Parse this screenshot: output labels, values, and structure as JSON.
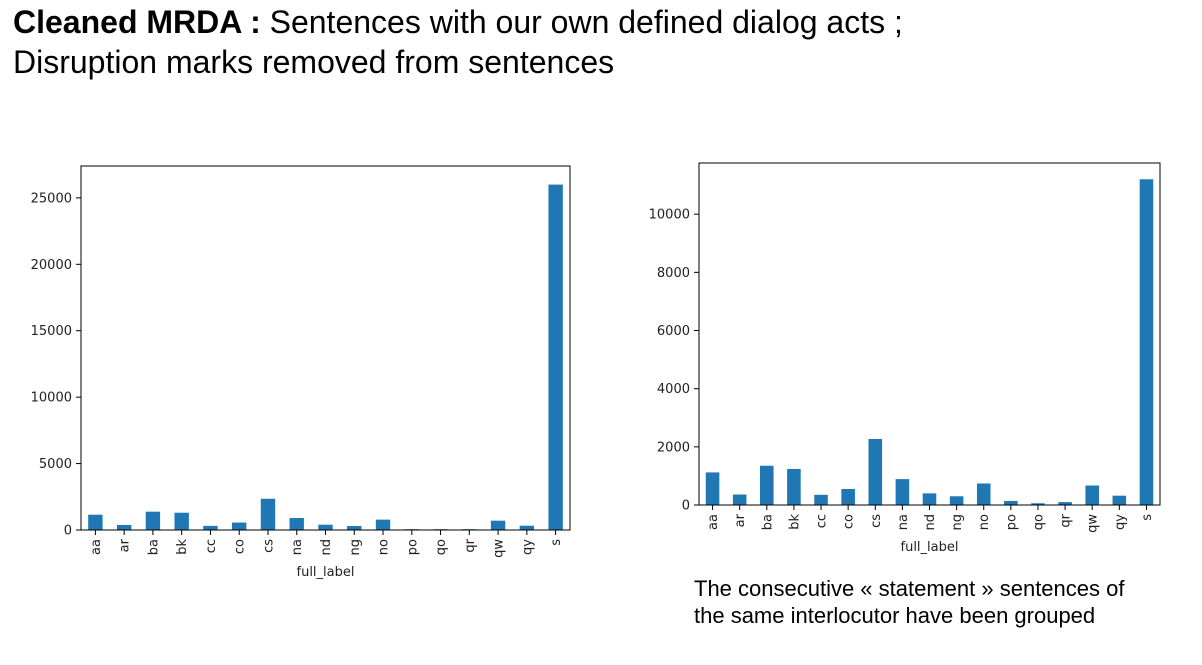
{
  "slide": {
    "title_bold": "Cleaned MRDA :",
    "title_rest": " Sentences with our own defined dialog acts ;",
    "title_line2": "Disruption marks removed from sentences",
    "caption_line1": "The consecutive « statement » sentences of",
    "caption_line2": "the same interlocutor have been grouped"
  },
  "chart_data": [
    {
      "type": "bar",
      "categories": [
        "aa",
        "ar",
        "ba",
        "bk",
        "cc",
        "co",
        "cs",
        "na",
        "nd",
        "ng",
        "no",
        "po",
        "qo",
        "qr",
        "qw",
        "qy",
        "s"
      ],
      "values": [
        1150,
        380,
        1380,
        1300,
        310,
        560,
        2350,
        900,
        400,
        300,
        780,
        60,
        60,
        60,
        700,
        320,
        26000
      ],
      "xlabel": "full_label",
      "ylabel": "",
      "ylim": [
        0,
        27400
      ],
      "yticks": [
        0,
        5000,
        10000,
        15000,
        20000,
        25000
      ],
      "color": "#1f77b4",
      "grid": false,
      "legend": "none"
    },
    {
      "type": "bar",
      "categories": [
        "aa",
        "ar",
        "ba",
        "bk",
        "cc",
        "co",
        "cs",
        "na",
        "nd",
        "ng",
        "no",
        "po",
        "qo",
        "qr",
        "qw",
        "qy",
        "s"
      ],
      "values": [
        1120,
        360,
        1350,
        1240,
        350,
        550,
        2270,
        890,
        400,
        300,
        740,
        140,
        60,
        100,
        670,
        320,
        11200
      ],
      "xlabel": "full_label",
      "ylabel": "",
      "ylim": [
        0,
        11760
      ],
      "yticks": [
        0,
        2000,
        4000,
        6000,
        8000,
        10000
      ],
      "color": "#1f77b4",
      "grid": false,
      "legend": "none"
    }
  ]
}
